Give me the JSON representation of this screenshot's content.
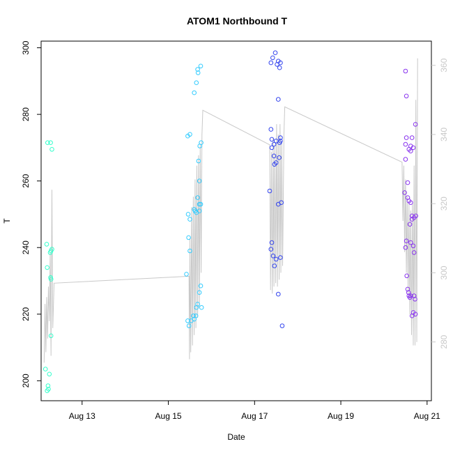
{
  "chart_data": {
    "type": "scatter",
    "title": "ATOM1 Northbound T",
    "xlabel": "Date",
    "ylabel": "T",
    "x_ticks": [
      "Aug 13",
      "Aug 15",
      "Aug 17",
      "Aug 19",
      "Aug 21"
    ],
    "x_tick_days": [
      13,
      15,
      17,
      19,
      21
    ],
    "xlim": [
      12.05,
      21.1
    ],
    "ylim": [
      194,
      302
    ],
    "y_ticks": [
      200,
      220,
      240,
      260,
      280,
      300
    ],
    "y2lim": [
      263,
      367
    ],
    "y2_ticks": [
      280,
      300,
      320,
      340,
      360
    ],
    "grid": false,
    "colors": {
      "series_1": "#33ffcc",
      "series_2": "#33ccff",
      "series_3": "#3344ee",
      "series_4": "#8833ee",
      "secondary_line": "#c8c8c8",
      "secondary_axis": "#c8c8c8"
    },
    "series": [
      {
        "color": "#33ffcc",
        "points": [
          [
            12.2,
            271.5
          ],
          [
            12.18,
            241
          ],
          [
            12.19,
            234
          ],
          [
            12.15,
            203.5
          ],
          [
            12.21,
            198.5
          ],
          [
            12.22,
            197.5
          ],
          [
            12.19,
            197
          ],
          [
            12.24,
            202
          ],
          [
            12.28,
            239
          ],
          [
            12.3,
            239.5
          ],
          [
            12.26,
            238.5
          ],
          [
            12.27,
            231
          ],
          [
            12.28,
            230.5
          ],
          [
            12.28,
            213.5
          ],
          [
            12.3,
            269.5
          ],
          [
            12.27,
            271.5
          ]
        ]
      },
      {
        "color": "#33ccff",
        "points": [
          [
            15.75,
            294.5
          ],
          [
            15.68,
            293.5
          ],
          [
            15.69,
            292.5
          ],
          [
            15.6,
            286.5
          ],
          [
            15.65,
            289.5
          ],
          [
            15.5,
            274
          ],
          [
            15.45,
            273.5
          ],
          [
            15.76,
            271.5
          ],
          [
            15.73,
            270.5
          ],
          [
            15.7,
            266
          ],
          [
            15.72,
            260
          ],
          [
            15.68,
            255
          ],
          [
            15.75,
            253
          ],
          [
            15.72,
            253
          ],
          [
            15.6,
            251.5
          ],
          [
            15.62,
            251
          ],
          [
            15.65,
            250.5
          ],
          [
            15.72,
            251
          ],
          [
            15.46,
            250
          ],
          [
            15.5,
            248.5
          ],
          [
            15.47,
            243
          ],
          [
            15.5,
            239
          ],
          [
            15.42,
            232
          ],
          [
            15.75,
            228.5
          ],
          [
            15.72,
            226.5
          ],
          [
            15.68,
            223
          ],
          [
            15.65,
            222
          ],
          [
            15.77,
            222
          ],
          [
            15.64,
            219.5
          ],
          [
            15.58,
            219.5
          ],
          [
            15.6,
            218.5
          ],
          [
            15.53,
            218
          ],
          [
            15.45,
            218
          ],
          [
            15.48,
            216.5
          ]
        ]
      },
      {
        "color": "#3344ee",
        "points": [
          [
            17.48,
            298.5
          ],
          [
            17.42,
            297
          ],
          [
            17.55,
            296
          ],
          [
            17.6,
            295.5
          ],
          [
            17.38,
            295.5
          ],
          [
            17.52,
            295
          ],
          [
            17.58,
            294
          ],
          [
            17.55,
            284.5
          ],
          [
            17.38,
            275.5
          ],
          [
            17.4,
            272.5
          ],
          [
            17.6,
            273
          ],
          [
            17.45,
            271
          ],
          [
            17.5,
            272
          ],
          [
            17.58,
            271.5
          ],
          [
            17.6,
            272
          ],
          [
            17.4,
            270
          ],
          [
            17.45,
            267.5
          ],
          [
            17.57,
            267
          ],
          [
            17.5,
            265.5
          ],
          [
            17.46,
            265
          ],
          [
            17.35,
            257
          ],
          [
            17.62,
            253.5
          ],
          [
            17.55,
            253
          ],
          [
            17.4,
            241.5
          ],
          [
            17.38,
            239.5
          ],
          [
            17.43,
            237.5
          ],
          [
            17.6,
            237
          ],
          [
            17.5,
            236.5
          ],
          [
            17.46,
            234.5
          ],
          [
            17.55,
            226
          ],
          [
            17.64,
            216.5
          ]
        ]
      },
      {
        "color": "#8833ee",
        "points": [
          [
            20.5,
            293
          ],
          [
            20.52,
            285.5
          ],
          [
            20.52,
            273
          ],
          [
            20.5,
            271
          ],
          [
            20.62,
            270.5
          ],
          [
            20.65,
            273
          ],
          [
            20.68,
            270
          ],
          [
            20.62,
            269
          ],
          [
            20.58,
            269.5
          ],
          [
            20.73,
            277
          ],
          [
            20.5,
            266.5
          ],
          [
            20.55,
            259.5
          ],
          [
            20.48,
            256.5
          ],
          [
            20.55,
            255
          ],
          [
            20.58,
            254
          ],
          [
            20.62,
            253.5
          ],
          [
            20.65,
            249.5
          ],
          [
            20.7,
            249
          ],
          [
            20.74,
            249.5
          ],
          [
            20.65,
            248.5
          ],
          [
            20.6,
            247
          ],
          [
            20.52,
            242
          ],
          [
            20.62,
            241.5
          ],
          [
            20.5,
            240
          ],
          [
            20.68,
            240.5
          ],
          [
            20.7,
            238.5
          ],
          [
            20.53,
            231.5
          ],
          [
            20.55,
            227.5
          ],
          [
            20.57,
            226.5
          ],
          [
            20.58,
            225.5
          ],
          [
            20.6,
            225
          ],
          [
            20.62,
            225.5
          ],
          [
            20.7,
            225.5
          ],
          [
            20.72,
            224.5
          ],
          [
            20.68,
            220.5
          ],
          [
            20.65,
            219.5
          ],
          [
            20.73,
            220
          ]
        ]
      }
    ],
    "secondary_line": {
      "color": "#c8c8c8",
      "points": [
        [
          12.12,
          274
        ],
        [
          12.14,
          291
        ],
        [
          12.16,
          277
        ],
        [
          12.18,
          293
        ],
        [
          12.2,
          281
        ],
        [
          12.22,
          296
        ],
        [
          12.24,
          286
        ],
        [
          12.26,
          306
        ],
        [
          12.28,
          276
        ],
        [
          12.3,
          324
        ],
        [
          12.32,
          284
        ],
        [
          12.35,
          297
        ],
        [
          15.48,
          299
        ],
        [
          15.49,
          275
        ],
        [
          15.5,
          310
        ],
        [
          15.52,
          277
        ],
        [
          15.54,
          319
        ],
        [
          15.56,
          279
        ],
        [
          15.58,
          322
        ],
        [
          15.6,
          282
        ],
        [
          15.62,
          327
        ],
        [
          15.64,
          284
        ],
        [
          15.66,
          331
        ],
        [
          15.68,
          287
        ],
        [
          15.7,
          334
        ],
        [
          15.72,
          290
        ],
        [
          15.74,
          337
        ],
        [
          15.76,
          300
        ],
        [
          15.78,
          340
        ],
        [
          15.8,
          347
        ],
        [
          17.35,
          337
        ],
        [
          17.37,
          295
        ],
        [
          17.39,
          335
        ],
        [
          17.41,
          294
        ],
        [
          17.43,
          339
        ],
        [
          17.45,
          296
        ],
        [
          17.47,
          337
        ],
        [
          17.49,
          297
        ],
        [
          17.51,
          343
        ],
        [
          17.53,
          296
        ],
        [
          17.55,
          340
        ],
        [
          17.57,
          298
        ],
        [
          17.59,
          343
        ],
        [
          17.61,
          300
        ],
        [
          17.63,
          338
        ],
        [
          17.65,
          302
        ],
        [
          17.68,
          340
        ],
        [
          17.7,
          348
        ],
        [
          20.42,
          332
        ],
        [
          20.44,
          315
        ],
        [
          20.46,
          331
        ],
        [
          20.48,
          306
        ],
        [
          20.5,
          327
        ],
        [
          20.52,
          300
        ],
        [
          20.54,
          322
        ],
        [
          20.56,
          294
        ],
        [
          20.58,
          320
        ],
        [
          20.6,
          288
        ],
        [
          20.62,
          318
        ],
        [
          20.64,
          282
        ],
        [
          20.66,
          320
        ],
        [
          20.68,
          279
        ],
        [
          20.7,
          331
        ],
        [
          20.72,
          279
        ],
        [
          20.74,
          350
        ],
        [
          20.76,
          280
        ],
        [
          20.78,
          362
        ]
      ]
    }
  }
}
